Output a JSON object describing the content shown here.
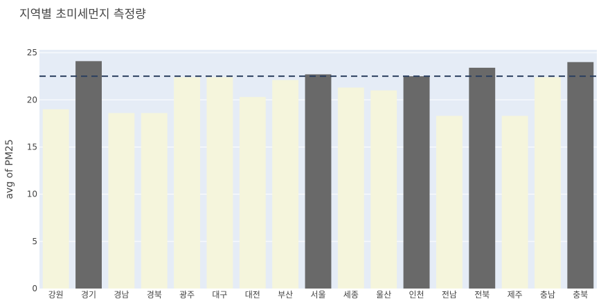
{
  "chart_data": {
    "type": "bar",
    "title": "지역별 초미세먼지 측정량",
    "ylabel": "avg of PM25",
    "xlabel": "",
    "ylim": [
      0,
      25.3
    ],
    "yticks": [
      0,
      5,
      10,
      15,
      20,
      25
    ],
    "categories": [
      "강원",
      "경기",
      "경남",
      "경북",
      "광주",
      "대구",
      "대전",
      "부산",
      "서울",
      "세종",
      "울산",
      "인천",
      "전남",
      "전북",
      "제주",
      "충남",
      "충북"
    ],
    "values": [
      19.0,
      24.1,
      18.6,
      18.6,
      22.4,
      22.4,
      20.3,
      22.1,
      22.7,
      21.3,
      21.0,
      22.5,
      18.3,
      23.4,
      18.3,
      22.4,
      24.0
    ],
    "highlight": [
      false,
      true,
      false,
      false,
      false,
      false,
      false,
      false,
      true,
      false,
      false,
      true,
      false,
      true,
      false,
      false,
      true
    ],
    "reference_line": 22.5,
    "colors": {
      "bar": "#f5f5dc",
      "highlight": "#696969",
      "plot_background": "#e5ecf6",
      "grid": "#ffffff",
      "reference_line": "#2a3f5f"
    }
  }
}
